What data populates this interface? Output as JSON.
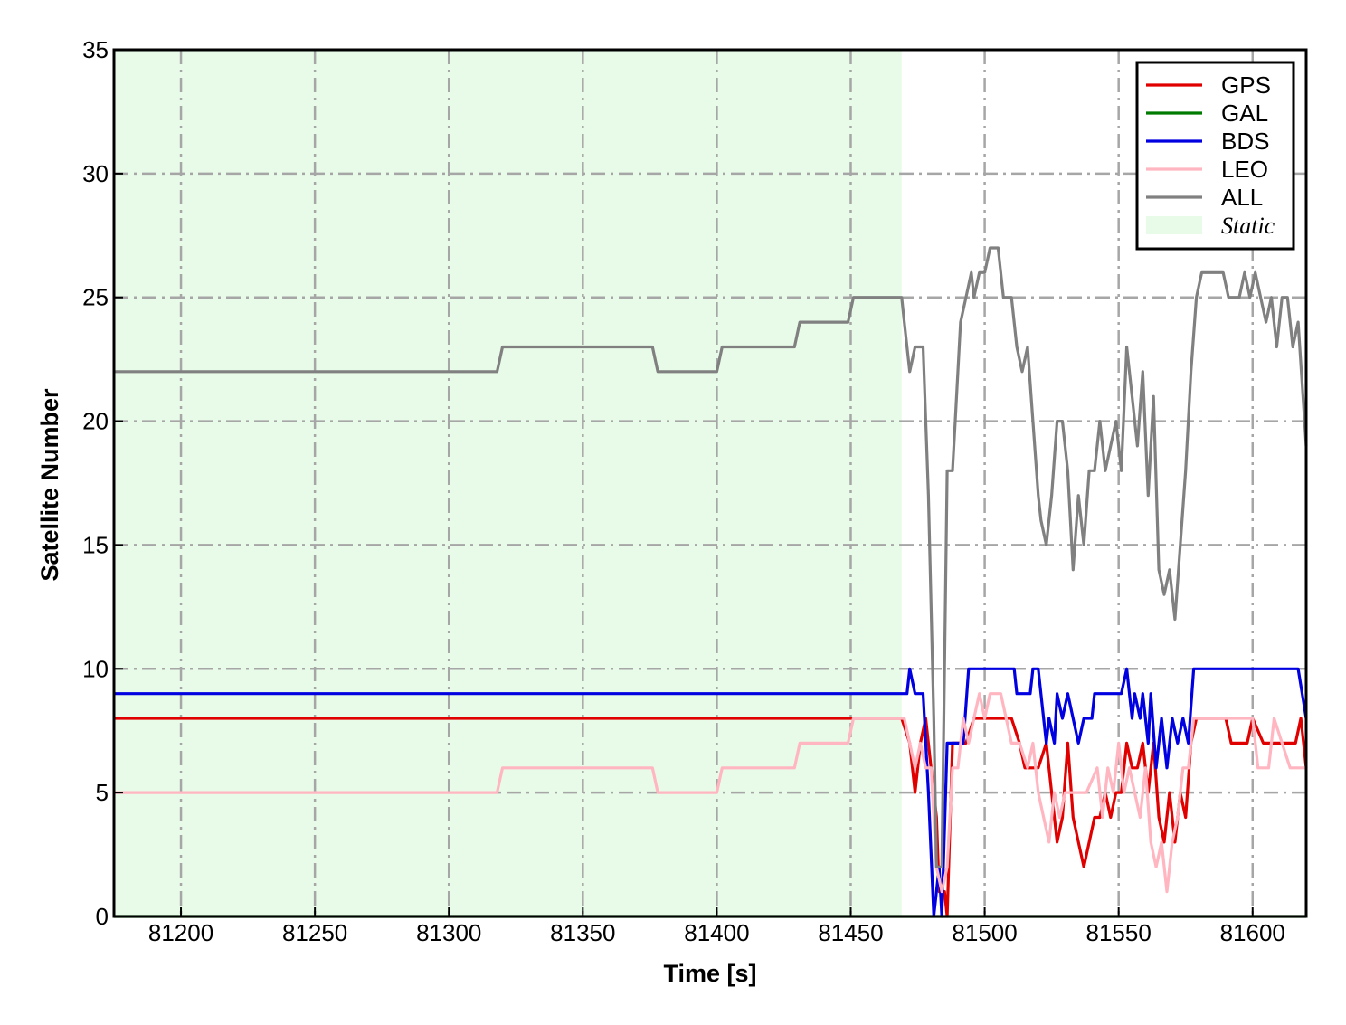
{
  "chart_data": {
    "type": "line",
    "xlabel": "Time [s]",
    "ylabel": "Satellite Number",
    "xlim": [
      81175,
      81620
    ],
    "ylim": [
      0,
      35
    ],
    "xticks": [
      81200,
      81250,
      81300,
      81350,
      81400,
      81450,
      81500,
      81550,
      81600
    ],
    "yticks": [
      0,
      5,
      10,
      15,
      20,
      25,
      30,
      35
    ],
    "grid": true,
    "grid_style": "dash-dot",
    "legend_position": "top-right",
    "shaded_region": {
      "name": "Static",
      "x_range": [
        81175,
        81469
      ],
      "color": "#e8fbe8"
    },
    "series": [
      {
        "name": "GPS",
        "color": "#e00000",
        "points": [
          [
            81175,
            8
          ],
          [
            81469,
            8
          ],
          [
            81472,
            7
          ],
          [
            81474,
            5
          ],
          [
            81476,
            7
          ],
          [
            81478,
            8
          ],
          [
            81480,
            6
          ],
          [
            81482,
            4
          ],
          [
            81483,
            1
          ],
          [
            81485,
            1
          ],
          [
            81486,
            0
          ],
          [
            81488,
            7
          ],
          [
            81490,
            7
          ],
          [
            81493,
            7
          ],
          [
            81496,
            8
          ],
          [
            81510,
            8
          ],
          [
            81513,
            7
          ],
          [
            81515,
            6
          ],
          [
            81520,
            6
          ],
          [
            81523,
            7
          ],
          [
            81525,
            5
          ],
          [
            81527,
            3
          ],
          [
            81529,
            4
          ],
          [
            81531,
            7
          ],
          [
            81533,
            4
          ],
          [
            81535,
            3
          ],
          [
            81537,
            2
          ],
          [
            81539,
            3
          ],
          [
            81541,
            4
          ],
          [
            81543,
            4
          ],
          [
            81545,
            5
          ],
          [
            81547,
            4
          ],
          [
            81549,
            5
          ],
          [
            81551,
            5
          ],
          [
            81553,
            7
          ],
          [
            81555,
            6
          ],
          [
            81557,
            6
          ],
          [
            81559,
            7
          ],
          [
            81561,
            5
          ],
          [
            81563,
            7
          ],
          [
            81565,
            4
          ],
          [
            81567,
            3
          ],
          [
            81569,
            5
          ],
          [
            81571,
            3
          ],
          [
            81573,
            5
          ],
          [
            81575,
            4
          ],
          [
            81577,
            7
          ],
          [
            81579,
            8
          ],
          [
            81590,
            8
          ],
          [
            81592,
            7
          ],
          [
            81598,
            7
          ],
          [
            81600,
            8
          ],
          [
            81604,
            7
          ],
          [
            81616,
            7
          ],
          [
            81618,
            8
          ],
          [
            81620,
            6
          ]
        ]
      },
      {
        "name": "GAL",
        "color": "#007a00",
        "points": [
          [
            81175,
            0
          ],
          [
            81620,
            0
          ]
        ]
      },
      {
        "name": "BDS",
        "color": "#0000e0",
        "points": [
          [
            81175,
            9
          ],
          [
            81471,
            9
          ],
          [
            81472,
            10
          ],
          [
            81474,
            9
          ],
          [
            81477,
            9
          ],
          [
            81479,
            5
          ],
          [
            81481,
            0
          ],
          [
            81483,
            2
          ],
          [
            81484,
            0
          ],
          [
            81486,
            7
          ],
          [
            81492,
            7
          ],
          [
            81494,
            10
          ],
          [
            81511,
            10
          ],
          [
            81512,
            9
          ],
          [
            81517,
            9
          ],
          [
            81518,
            10
          ],
          [
            81520,
            10
          ],
          [
            81522,
            8
          ],
          [
            81523,
            7
          ],
          [
            81524,
            8
          ],
          [
            81526,
            7
          ],
          [
            81527,
            9
          ],
          [
            81529,
            8
          ],
          [
            81531,
            9
          ],
          [
            81533,
            8
          ],
          [
            81535,
            7
          ],
          [
            81537,
            8
          ],
          [
            81540,
            8
          ],
          [
            81541,
            9
          ],
          [
            81551,
            9
          ],
          [
            81553,
            10
          ],
          [
            81555,
            8
          ],
          [
            81556,
            9
          ],
          [
            81558,
            8
          ],
          [
            81559,
            9
          ],
          [
            81561,
            7
          ],
          [
            81562,
            9
          ],
          [
            81564,
            6
          ],
          [
            81566,
            8
          ],
          [
            81568,
            6
          ],
          [
            81570,
            8
          ],
          [
            81572,
            7
          ],
          [
            81574,
            8
          ],
          [
            81576,
            7
          ],
          [
            81578,
            10
          ],
          [
            81617,
            10
          ],
          [
            81620,
            8
          ]
        ]
      },
      {
        "name": "LEO",
        "color": "#ffb6c1",
        "points": [
          [
            81175,
            5
          ],
          [
            81318,
            5
          ],
          [
            81320,
            6
          ],
          [
            81376,
            6
          ],
          [
            81378,
            5
          ],
          [
            81400,
            5
          ],
          [
            81402,
            6
          ],
          [
            81429,
            6
          ],
          [
            81431,
            7
          ],
          [
            81449,
            7
          ],
          [
            81451,
            8
          ],
          [
            81470,
            8
          ],
          [
            81472,
            7
          ],
          [
            81474,
            6
          ],
          [
            81476,
            7
          ],
          [
            81478,
            6
          ],
          [
            81480,
            6
          ],
          [
            81482,
            2
          ],
          [
            81484,
            1
          ],
          [
            81486,
            2
          ],
          [
            81488,
            6
          ],
          [
            81490,
            6
          ],
          [
            81492,
            8
          ],
          [
            81494,
            7
          ],
          [
            81496,
            8
          ],
          [
            81498,
            9
          ],
          [
            81500,
            8
          ],
          [
            81502,
            9
          ],
          [
            81506,
            9
          ],
          [
            81508,
            8
          ],
          [
            81510,
            7
          ],
          [
            81513,
            7
          ],
          [
            81516,
            6
          ],
          [
            81518,
            7
          ],
          [
            81520,
            5
          ],
          [
            81522,
            4
          ],
          [
            81524,
            3
          ],
          [
            81526,
            5
          ],
          [
            81528,
            4
          ],
          [
            81530,
            5
          ],
          [
            81534,
            5
          ],
          [
            81538,
            5
          ],
          [
            81542,
            6
          ],
          [
            81544,
            4
          ],
          [
            81546,
            6
          ],
          [
            81548,
            5
          ],
          [
            81550,
            7
          ],
          [
            81552,
            5
          ],
          [
            81554,
            6
          ],
          [
            81556,
            5
          ],
          [
            81558,
            4
          ],
          [
            81560,
            6
          ],
          [
            81562,
            3
          ],
          [
            81564,
            2
          ],
          [
            81566,
            3
          ],
          [
            81568,
            1
          ],
          [
            81570,
            3
          ],
          [
            81572,
            4
          ],
          [
            81574,
            6
          ],
          [
            81576,
            6
          ],
          [
            81578,
            8
          ],
          [
            81600,
            8
          ],
          [
            81602,
            6
          ],
          [
            81606,
            6
          ],
          [
            81608,
            8
          ],
          [
            81614,
            6
          ],
          [
            81620,
            6
          ]
        ]
      },
      {
        "name": "ALL",
        "color": "#808080",
        "points": [
          [
            81175,
            22
          ],
          [
            81318,
            22
          ],
          [
            81320,
            23
          ],
          [
            81376,
            23
          ],
          [
            81378,
            22
          ],
          [
            81400,
            22
          ],
          [
            81402,
            23
          ],
          [
            81429,
            23
          ],
          [
            81431,
            24
          ],
          [
            81449,
            24
          ],
          [
            81451,
            25
          ],
          [
            81469,
            25
          ],
          [
            81470,
            24
          ],
          [
            81472,
            22
          ],
          [
            81474,
            23
          ],
          [
            81477,
            23
          ],
          [
            81479,
            17
          ],
          [
            81481,
            8
          ],
          [
            81482,
            2
          ],
          [
            81484,
            2
          ],
          [
            81486,
            18
          ],
          [
            81488,
            18
          ],
          [
            81489,
            20
          ],
          [
            81491,
            24
          ],
          [
            81493,
            25
          ],
          [
            81495,
            26
          ],
          [
            81496,
            25
          ],
          [
            81498,
            26
          ],
          [
            81500,
            26
          ],
          [
            81502,
            27
          ],
          [
            81505,
            27
          ],
          [
            81507,
            25
          ],
          [
            81510,
            25
          ],
          [
            81512,
            23
          ],
          [
            81514,
            22
          ],
          [
            81516,
            23
          ],
          [
            81518,
            20
          ],
          [
            81520,
            17
          ],
          [
            81521,
            16
          ],
          [
            81523,
            15
          ],
          [
            81525,
            17
          ],
          [
            81527,
            20
          ],
          [
            81529,
            20
          ],
          [
            81531,
            18
          ],
          [
            81533,
            14
          ],
          [
            81535,
            17
          ],
          [
            81537,
            15
          ],
          [
            81539,
            18
          ],
          [
            81541,
            18
          ],
          [
            81543,
            20
          ],
          [
            81545,
            18
          ],
          [
            81547,
            19
          ],
          [
            81549,
            20
          ],
          [
            81551,
            18
          ],
          [
            81553,
            23
          ],
          [
            81555,
            21
          ],
          [
            81557,
            19
          ],
          [
            81559,
            22
          ],
          [
            81561,
            17
          ],
          [
            81563,
            21
          ],
          [
            81565,
            14
          ],
          [
            81567,
            13
          ],
          [
            81569,
            14
          ],
          [
            81571,
            12
          ],
          [
            81573,
            15
          ],
          [
            81575,
            18
          ],
          [
            81577,
            22
          ],
          [
            81579,
            25
          ],
          [
            81581,
            26
          ],
          [
            81589,
            26
          ],
          [
            81591,
            25
          ],
          [
            81595,
            25
          ],
          [
            81597,
            26
          ],
          [
            81599,
            25
          ],
          [
            81601,
            26
          ],
          [
            81603,
            25
          ],
          [
            81605,
            24
          ],
          [
            81607,
            25
          ],
          [
            81609,
            23
          ],
          [
            81611,
            25
          ],
          [
            81613,
            25
          ],
          [
            81615,
            23
          ],
          [
            81617,
            24
          ],
          [
            81620,
            19
          ]
        ]
      }
    ]
  }
}
